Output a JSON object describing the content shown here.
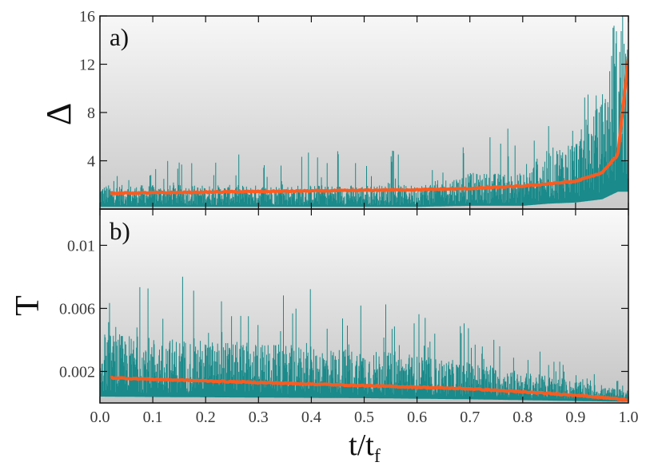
{
  "chart_data": [
    {
      "panel_label": "a)",
      "type": "line",
      "ylabel": "Δ",
      "xlim": [
        0.0,
        1.0
      ],
      "ylim": [
        0,
        16
      ],
      "yticks": [
        4,
        8,
        12,
        16
      ],
      "ytick_labels": [
        "4",
        "8",
        "12",
        "16"
      ],
      "grid": false,
      "background": "gradient light-to-gray",
      "series": [
        {
          "color": "#1a8a8a",
          "style": "noisy spikes",
          "x": [
            0.0,
            0.1,
            0.2,
            0.3,
            0.4,
            0.5,
            0.6,
            0.7,
            0.8,
            0.85,
            0.9,
            0.95,
            0.98,
            1.0
          ],
          "y_typical_max": [
            2,
            2,
            2,
            2,
            2,
            2,
            2,
            3,
            3,
            5,
            6,
            9,
            16,
            16
          ],
          "y_spike_max": [
            3,
            4,
            4,
            5,
            5,
            5,
            5,
            6,
            7,
            8,
            10,
            14,
            16,
            16
          ]
        },
        {
          "color": "#ff5a1f",
          "style": "running mean",
          "x": [
            0.02,
            0.1,
            0.2,
            0.3,
            0.4,
            0.5,
            0.6,
            0.7,
            0.8,
            0.9,
            0.95,
            0.98,
            1.0
          ],
          "y": [
            1.3,
            1.35,
            1.4,
            1.45,
            1.5,
            1.55,
            1.6,
            1.7,
            1.9,
            2.3,
            3.0,
            4.5,
            12.5
          ]
        }
      ]
    },
    {
      "panel_label": "b)",
      "type": "line",
      "ylabel": "T",
      "xlabel_base": "t/t",
      "xlabel_sub": "f",
      "xlim": [
        0.0,
        1.0
      ],
      "ylim": [
        0.0,
        0.0123
      ],
      "xticks": [
        0.0,
        0.1,
        0.2,
        0.3,
        0.4,
        0.5,
        0.6,
        0.7,
        0.8,
        0.9,
        1.0
      ],
      "xtick_labels": [
        "0.0",
        "0.1",
        "0.2",
        "0.3",
        "0.4",
        "0.5",
        "0.6",
        "0.7",
        "0.8",
        "0.9",
        "1.0"
      ],
      "yticks": [
        0.002,
        0.006,
        0.01
      ],
      "ytick_labels": [
        "0.002",
        "0.006",
        "0.01"
      ],
      "grid": false,
      "background": "gradient light-to-gray",
      "series": [
        {
          "color": "#1a8a8a",
          "style": "noisy spikes",
          "x": [
            0.0,
            0.1,
            0.2,
            0.3,
            0.4,
            0.5,
            0.6,
            0.7,
            0.8,
            0.9,
            1.0
          ],
          "y_typical_max": [
            0.0045,
            0.0042,
            0.004,
            0.0038,
            0.0036,
            0.0034,
            0.003,
            0.0026,
            0.002,
            0.0014,
            0.0008
          ],
          "y_spike_max": [
            0.0068,
            0.0104,
            0.0068,
            0.0062,
            0.0076,
            0.0066,
            0.0068,
            0.0049,
            0.0042,
            0.0022,
            0.0012
          ]
        },
        {
          "color": "#ff5a1f",
          "style": "running mean",
          "x": [
            0.02,
            0.1,
            0.2,
            0.3,
            0.4,
            0.5,
            0.6,
            0.7,
            0.8,
            0.9,
            1.0
          ],
          "y": [
            0.0016,
            0.0015,
            0.0014,
            0.0013,
            0.0012,
            0.0011,
            0.001,
            0.0009,
            0.0007,
            0.0005,
            0.0002
          ]
        }
      ]
    }
  ]
}
